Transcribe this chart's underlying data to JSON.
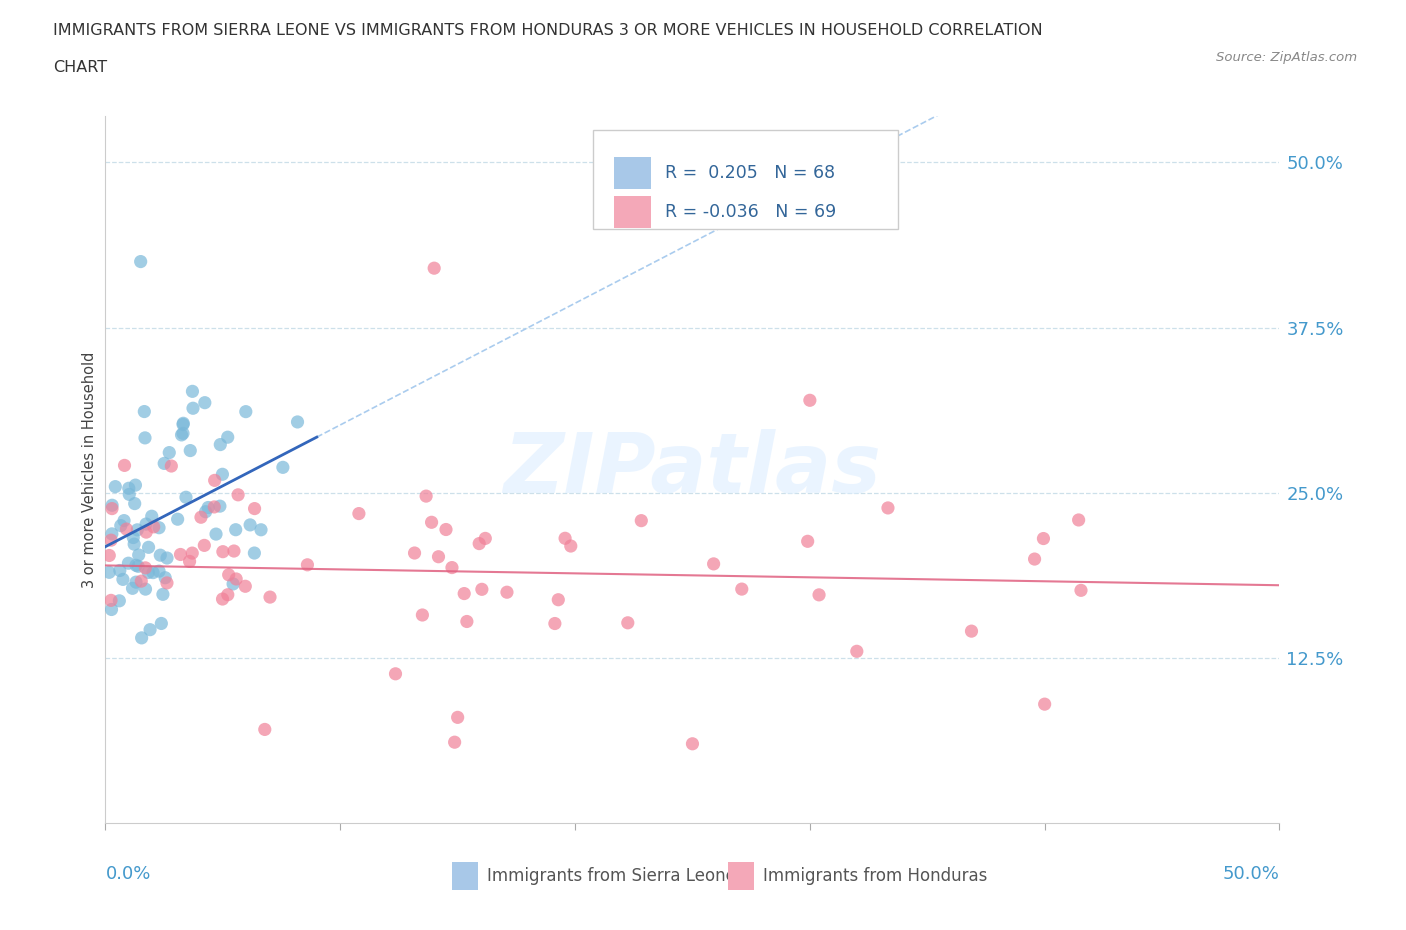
{
  "title_line1": "IMMIGRANTS FROM SIERRA LEONE VS IMMIGRANTS FROM HONDURAS 3 OR MORE VEHICLES IN HOUSEHOLD CORRELATION",
  "title_line2": "CHART",
  "source": "Source: ZipAtlas.com",
  "ylabel": "3 or more Vehicles in Household",
  "yticks_right": [
    "12.5%",
    "25.0%",
    "37.5%",
    "50.0%"
  ],
  "yticks_right_vals": [
    0.125,
    0.25,
    0.375,
    0.5
  ],
  "xmin": 0.0,
  "xmax": 0.5,
  "ymin": 0.0,
  "ymax": 0.535,
  "watermark": "ZIPatlas",
  "sierra_leone_color": "#7ab8d9",
  "honduras_color": "#f08098",
  "trend_sierra_solid_color": "#3366bb",
  "trend_sierra_dash_color": "#aaccee",
  "trend_honduras_color": "#e06080",
  "legend_patch_sl": "#a8c8e8",
  "legend_patch_hon": "#f4a8b8",
  "legend_text_color": "#336699",
  "right_axis_color": "#4499cc",
  "grid_color": "#c8dde8",
  "title_color": "#333333",
  "source_color": "#888888",
  "watermark_color": "#ddeeff",
  "bottom_label_color": "#555555"
}
